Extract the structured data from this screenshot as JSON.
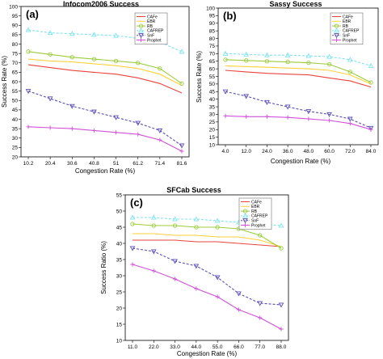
{
  "chart_data": [
    {
      "type": "line",
      "panel_label": "(a)",
      "title": "Infocom2006 Success",
      "xlabel": "Congestion Rate (%)",
      "ylabel": "Success Rate (%)",
      "x": [
        10.2,
        20.4,
        30.6,
        40.8,
        51,
        61.2,
        71.4,
        81.6
      ],
      "x_tick_labels": [
        "10.2",
        "20.4",
        "30.6",
        "40.8",
        "51",
        "61.2",
        "71.4",
        "81.6"
      ],
      "ylim": [
        20,
        100
      ],
      "y_ticks": [
        20,
        25,
        30,
        35,
        40,
        45,
        50,
        55,
        60,
        65,
        70,
        75,
        80,
        85,
        90,
        95,
        100
      ],
      "legend_position": "top-right",
      "series": [
        {
          "name": "CAFe",
          "values": [
            69,
            67.5,
            66,
            65,
            64,
            62,
            59,
            54
          ]
        },
        {
          "name": "EBR",
          "values": [
            72,
            71,
            70.5,
            69.5,
            68.5,
            67,
            64,
            58
          ]
        },
        {
          "name": "RB",
          "values": [
            76,
            74.5,
            73,
            72,
            71,
            70,
            67,
            59
          ]
        },
        {
          "name": "CAFREP",
          "values": [
            87.5,
            86,
            85.5,
            85,
            84.5,
            83,
            81,
            76
          ]
        },
        {
          "name": "SnF",
          "values": [
            55,
            51,
            47,
            44,
            41,
            38,
            34,
            26
          ]
        },
        {
          "name": "Prophet",
          "values": [
            36,
            35.5,
            35,
            34,
            33,
            32,
            29,
            23
          ]
        }
      ]
    },
    {
      "type": "line",
      "panel_label": "(b)",
      "title": "Sassy Success",
      "xlabel": "Congestion Rate (%)",
      "ylabel": "Success Rate (%)",
      "x": [
        4.0,
        12.0,
        24.0,
        36.0,
        48.0,
        60.0,
        72.0,
        84.0
      ],
      "x_tick_labels": [
        "4.0",
        "12.0",
        "24.0",
        "36.0",
        "48.0",
        "60.0",
        "72.0",
        "84.0"
      ],
      "ylim": [
        10,
        100
      ],
      "y_ticks": [
        10,
        15,
        20,
        25,
        30,
        35,
        40,
        45,
        50,
        55,
        60,
        65,
        70,
        75,
        80,
        85,
        90,
        95,
        100
      ],
      "legend_position": "top-right",
      "series": [
        {
          "name": "CAFe",
          "values": [
            59,
            58,
            57,
            56.5,
            56,
            54,
            52,
            48
          ]
        },
        {
          "name": "EBR",
          "values": [
            62,
            61.5,
            61,
            60.5,
            60,
            59,
            56,
            50
          ]
        },
        {
          "name": "RB",
          "values": [
            66,
            65.5,
            65,
            64.5,
            64,
            63,
            58,
            51
          ]
        },
        {
          "name": "CAFREP",
          "values": [
            70,
            69.5,
            69,
            69,
            68.5,
            68,
            66,
            62
          ]
        },
        {
          "name": "SnF",
          "values": [
            45,
            42,
            38,
            35,
            32,
            30,
            27,
            21
          ]
        },
        {
          "name": "Prophet",
          "values": [
            29,
            28.5,
            28.5,
            28,
            27,
            26,
            24,
            20
          ]
        }
      ]
    },
    {
      "type": "line",
      "panel_label": "(c)",
      "title": "SFCab Success",
      "xlabel": "Congestion Rate (%)",
      "ylabel": "Success Ratio (%)",
      "x": [
        11.0,
        22.0,
        33.0,
        44.0,
        55.0,
        66.0,
        77.0,
        88.0
      ],
      "x_tick_labels": [
        "11.0",
        "22.0",
        "33.0",
        "44.0",
        "55.0",
        "66.0",
        "77.0",
        "88.0"
      ],
      "ylim": [
        10,
        55
      ],
      "y_ticks": [
        10,
        15,
        20,
        25,
        30,
        35,
        40,
        45,
        50,
        55
      ],
      "legend_position": "top-right",
      "series": [
        {
          "name": "CAFe",
          "values": [
            41,
            41,
            41,
            40.5,
            40.5,
            40,
            39.5,
            39
          ]
        },
        {
          "name": "EBR",
          "values": [
            43,
            43,
            42.5,
            42.5,
            42,
            42,
            41,
            39
          ]
        },
        {
          "name": "RB",
          "values": [
            46,
            45.5,
            45.5,
            45,
            45,
            44.5,
            42.5,
            38.5
          ]
        },
        {
          "name": "CAFREP",
          "values": [
            48,
            48,
            47.5,
            47.5,
            47,
            46.5,
            46,
            45.5
          ]
        },
        {
          "name": "SnF",
          "values": [
            38.5,
            37.5,
            34.5,
            33,
            29.5,
            24.5,
            21.5,
            21
          ]
        },
        {
          "name": "Prophet",
          "values": [
            33.5,
            31.5,
            29,
            26,
            23.5,
            19.5,
            17,
            13.5
          ]
        }
      ]
    }
  ],
  "series_colors": {
    "CAFe": "#e8443c",
    "EBR": "#ffd23a",
    "RB": "#9ccc3c",
    "CAFREP": "#7fe4ee",
    "SnF": "#5a4fb4",
    "Prophet": "#d050d8"
  },
  "series_markers": {
    "CAFe": "none",
    "EBR": "none",
    "RB": "circle",
    "CAFREP": "triangle-up",
    "SnF": "triangle-down",
    "Prophet": "plus"
  },
  "series_dashed": {
    "CAFe": false,
    "EBR": false,
    "RB": false,
    "CAFREP": true,
    "SnF": true,
    "Prophet": false
  }
}
